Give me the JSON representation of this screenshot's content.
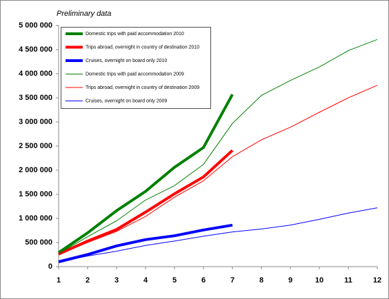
{
  "chart_data": {
    "type": "line",
    "title": "Preliminary data",
    "x": [
      1,
      2,
      3,
      4,
      5,
      6,
      7,
      8,
      9,
      10,
      11,
      12
    ],
    "xlim": [
      1,
      12
    ],
    "xticks": [
      1,
      2,
      3,
      4,
      5,
      6,
      7,
      8,
      9,
      10,
      11,
      12
    ],
    "ylim": [
      0,
      5000000
    ],
    "yticks": [
      {
        "value": 0,
        "label": "0"
      },
      {
        "value": 500000,
        "label": "500 000"
      },
      {
        "value": 1000000,
        "label": "1 000 000"
      },
      {
        "value": 1500000,
        "label": "1 500 000"
      },
      {
        "value": 2000000,
        "label": "2 000 000"
      },
      {
        "value": 2500000,
        "label": "2 500 000"
      },
      {
        "value": 3000000,
        "label": "3 000 000"
      },
      {
        "value": 3500000,
        "label": "3 500 000"
      },
      {
        "value": 4000000,
        "label": "4 000 000"
      },
      {
        "value": 4500000,
        "label": "4 500 000"
      },
      {
        "value": 5000000,
        "label": "5 000 000"
      }
    ],
    "legend": "top-left",
    "series": [
      {
        "name": "Domestic trips with paid accommodation  2010",
        "color": "#008000",
        "line_width": 4,
        "values": [
          290000,
          700000,
          1160000,
          1560000,
          2060000,
          2470000,
          3570000,
          null,
          null,
          null,
          null,
          null
        ]
      },
      {
        "name": "Trips abroad, overnight in country of destination 2010",
        "color": "#ff0000",
        "line_width": 4,
        "values": [
          260000,
          530000,
          770000,
          1130000,
          1510000,
          1860000,
          2410000,
          null,
          null,
          null,
          null,
          null
        ]
      },
      {
        "name": "Cruises, overnight on board only 2010",
        "color": "#0000ff",
        "line_width": 4,
        "values": [
          100000,
          250000,
          430000,
          560000,
          640000,
          760000,
          860000,
          null,
          null,
          null,
          null,
          null
        ]
      },
      {
        "name": "Domestic trips with paid accommodation  2009",
        "color": "#008000",
        "line_width": 1,
        "values": [
          270000,
          620000,
          950000,
          1380000,
          1680000,
          2120000,
          2970000,
          3550000,
          3860000,
          4140000,
          4480000,
          4710000
        ]
      },
      {
        "name": "Trips abroad, overnight in country of destination 2009",
        "color": "#ff0000",
        "line_width": 1,
        "values": [
          250000,
          500000,
          730000,
          1040000,
          1440000,
          1780000,
          2280000,
          2630000,
          2890000,
          3200000,
          3500000,
          3760000
        ]
      },
      {
        "name": "Cruises, overnight on board only 2009",
        "color": "#0000ff",
        "line_width": 1,
        "values": [
          100000,
          220000,
          320000,
          440000,
          530000,
          630000,
          720000,
          780000,
          860000,
          980000,
          1110000,
          1220000
        ]
      }
    ]
  }
}
